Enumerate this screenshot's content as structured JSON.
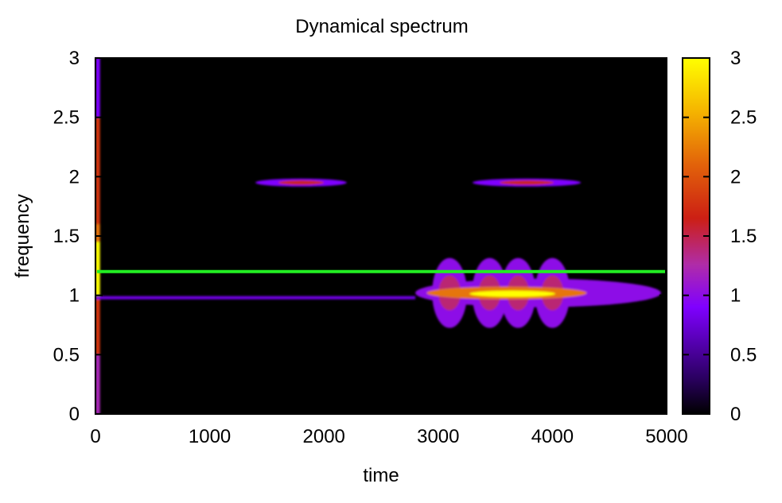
{
  "chart_data": {
    "type": "heatmap",
    "title": "Dynamical spectrum",
    "xlabel": "time",
    "ylabel": "frequency",
    "xlim": [
      0,
      5000
    ],
    "ylim": [
      0,
      3
    ],
    "x_ticks": [
      "0",
      "1000",
      "2000",
      "3000",
      "4000",
      "5000"
    ],
    "y_ticks": [
      "0",
      "0.5",
      "1",
      "1.5",
      "2",
      "2.5",
      "3"
    ],
    "colorbar": {
      "range": [
        0,
        3
      ],
      "ticks": [
        "0",
        "0.5",
        "1",
        "1.5",
        "2",
        "2.5",
        "3"
      ],
      "colors": [
        "#000000",
        "#2a0060",
        "#7f00ff",
        "#b02ca8",
        "#cc1f14",
        "#e2620a",
        "#f5b400",
        "#ffff00"
      ]
    },
    "reference_line": {
      "frequency": 1.2,
      "color": "#22ee22"
    },
    "features": [
      {
        "feature": "initial vertical band",
        "time": [
          0,
          40
        ],
        "frequency": [
          0,
          3
        ],
        "peak_intensity": 3.0,
        "peak_frequency": 1.25
      },
      {
        "feature": "steady line",
        "time": [
          0,
          2800
        ],
        "frequency": 0.98,
        "intensity": 0.8
      },
      {
        "feature": "harmonic burst",
        "time": [
          1400,
          2200
        ],
        "frequency": 1.95,
        "peak_intensity": 1.6
      },
      {
        "feature": "harmonic burst",
        "time": [
          3300,
          4250
        ],
        "frequency": 1.95,
        "peak_intensity": 1.6
      },
      {
        "feature": "broad resonance",
        "time": [
          2800,
          4950
        ],
        "frequency": 1.02,
        "peak_intensity": 3.0,
        "lobe_times": [
          3100,
          3450,
          3700,
          4000
        ]
      }
    ],
    "grid": false,
    "legend": "colorbar right"
  }
}
